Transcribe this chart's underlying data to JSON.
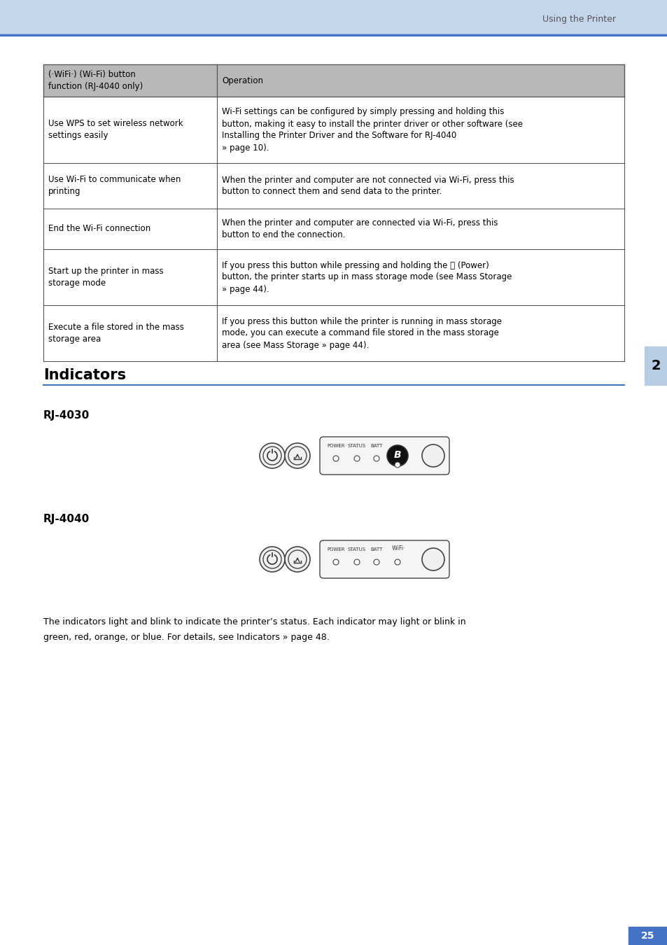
{
  "page_bg": "#ffffff",
  "header_bg": "#c5d5ea",
  "header_line_color": "#4472c4",
  "header_text": "Using the Printer",
  "page_number": "25",
  "page_number_bg": "#4472c4",
  "chapter_tab_bg": "#b8cce4",
  "chapter_tab_text": "2",
  "indicators_title": "Indicators",
  "indicators_line_color": "#4472c4",
  "rj4030_label": "RJ-4030",
  "rj4040_label": "RJ-4040",
  "footer_line1": "The indicators light and blink to indicate the printer’s status. Each indicator may light or blink in",
  "footer_line2": "green, red, orange, or blue. For details, see Indicators » page 48.",
  "table_header_col1": "(·WiFi·) (Wi-Fi) button\nfunction (RJ-4040 only)",
  "table_header_col2": "Operation",
  "table_rows": [
    {
      "col1": "Use WPS to set wireless network\nsettings easily",
      "col2": "Wi-Fi settings can be configured by simply pressing and holding this\nbutton, making it easy to install the printer driver or other software (see\nInstalling the Printer Driver and the Software for RJ-4040\n» page 10)."
    },
    {
      "col1": "Use Wi-Fi to communicate when\nprinting",
      "col2": "When the printer and computer are not connected via Wi-Fi, press this\nbutton to connect them and send data to the printer."
    },
    {
      "col1": "End the Wi-Fi connection",
      "col2": "When the printer and computer are connected via Wi-Fi, press this\nbutton to end the connection."
    },
    {
      "col1": "Start up the printer in mass\nstorage mode",
      "col2": "If you press this button while pressing and holding the ⏻ (Power)\nbutton, the printer starts up in mass storage mode (see Mass Storage\n» page 44)."
    },
    {
      "col1": "Execute a file stored in the mass\nstorage area",
      "col2": "If you press this button while the printer is running in mass storage\nmode, you can execute a command file stored in the mass storage\narea (see Mass Storage » page 44)."
    }
  ]
}
